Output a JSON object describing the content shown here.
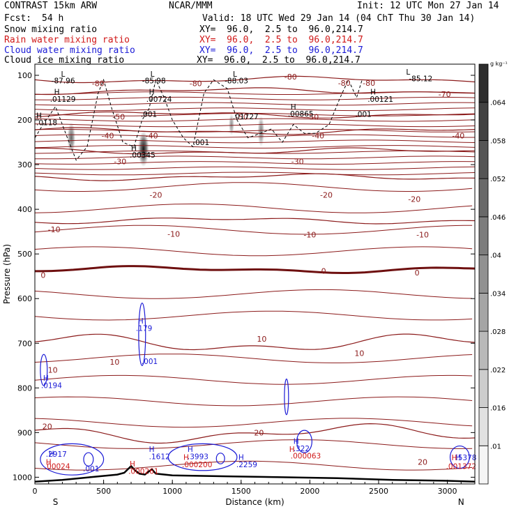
{
  "header": {
    "model": "CONTRAST 15km ARW",
    "center": "NCAR/MMM",
    "init": "Init: 12 UTC Mon 27 Jan 14",
    "fcst_label": "Fcst:",
    "fcst_value": "54 h",
    "valid": "Valid: 18 UTC Wed 29 Jan 14 (04 ChT Thu 30 Jan 14)"
  },
  "fields": [
    {
      "name": "Snow mixing ratio",
      "xy": "XY=  96.0,  2.5 to  96.0,214.7",
      "color": "#000000"
    },
    {
      "name": "Rain water mixing ratio",
      "xy": "XY=  96.0,  2.5 to  96.0,214.7",
      "color": "#d01818"
    },
    {
      "name": "Cloud water mixing ratio",
      "xy": "XY=  96.0,  2.5 to  96.0,214.7",
      "color": "#1a1ad6"
    },
    {
      "name": "Cloud ice mixing ratio",
      "xy": "XY=  96.0,  2.5 to  96.0,214.7",
      "color": "#000000"
    }
  ],
  "colorbar": {
    "unit": "g kg⁻¹",
    "ticks": [
      ".01",
      ".016",
      ".022",
      ".028",
      ".034",
      ".04",
      ".046",
      ".052",
      ".058",
      ".064"
    ]
  },
  "colors": {
    "isotherm": "#8b1a1a",
    "zero_isotherm": "#6e0f0f",
    "terrain": "#000000",
    "cloud_water": "#1a1ad6",
    "rain": "#d01818",
    "ice": "#000000"
  },
  "chart_data": {
    "type": "cross-section",
    "xlabel": "Distance (km)",
    "ylabel": "Pressure (hPa)",
    "xlim": [
      0,
      3200
    ],
    "ylim": [
      1015,
      75
    ],
    "xticks": [
      0,
      500,
      1000,
      1500,
      2000,
      2500,
      3000
    ],
    "yticks": [
      100,
      200,
      300,
      400,
      500,
      600,
      700,
      800,
      900,
      1000
    ],
    "endpoints": {
      "left": "S",
      "right": "N"
    },
    "isotherms": [
      {
        "label": "-80",
        "p": 110
      },
      {
        "label": "-70",
        "p": 135
      },
      {
        "label": "-50",
        "p": 188
      },
      {
        "label": "-40",
        "p": 225
      },
      {
        "label": "-30",
        "p": 270
      },
      {
        "label": "-20",
        "p": 328
      },
      {
        "label": "-10",
        "p": 425
      },
      {
        "label": "0",
        "p": 535
      },
      {
        "label": "10",
        "p": 700
      },
      {
        "label": "20",
        "p": 902
      }
    ],
    "isotherm_labels": [
      {
        "text": "-80",
        "x": 1860,
        "p": 103
      },
      {
        "text": "-80",
        "x": 460,
        "p": 118
      },
      {
        "text": "-80",
        "x": 1170,
        "p": 118
      },
      {
        "text": "-80",
        "x": 2250,
        "p": 117
      },
      {
        "text": "-80",
        "x": 2430,
        "p": 117
      },
      {
        "text": "-70",
        "x": 2980,
        "p": 142
      },
      {
        "text": "-50",
        "x": 610,
        "p": 193
      },
      {
        "text": "-50",
        "x": 1505,
        "p": 193
      },
      {
        "text": "-50",
        "x": 2020,
        "p": 193
      },
      {
        "text": "-40",
        "x": 530,
        "p": 235
      },
      {
        "text": "-40",
        "x": 850,
        "p": 235
      },
      {
        "text": "-40",
        "x": 2060,
        "p": 235
      },
      {
        "text": "-40",
        "x": 3080,
        "p": 235
      },
      {
        "text": "-30",
        "x": 620,
        "p": 293
      },
      {
        "text": "-30",
        "x": 1910,
        "p": 293
      },
      {
        "text": "-20",
        "x": 880,
        "p": 368
      },
      {
        "text": "-20",
        "x": 2120,
        "p": 368
      },
      {
        "text": "-20",
        "x": 2760,
        "p": 377
      },
      {
        "text": "-10",
        "x": 140,
        "p": 445
      },
      {
        "text": "-10",
        "x": 1010,
        "p": 455
      },
      {
        "text": "-10",
        "x": 2000,
        "p": 457
      },
      {
        "text": "-10",
        "x": 2820,
        "p": 457
      },
      {
        "text": "0",
        "x": 60,
        "p": 547
      },
      {
        "text": "0",
        "x": 2100,
        "p": 538
      },
      {
        "text": "0",
        "x": 2780,
        "p": 542
      },
      {
        "text": "10",
        "x": 130,
        "p": 760
      },
      {
        "text": "10",
        "x": 580,
        "p": 742
      },
      {
        "text": "10",
        "x": 1650,
        "p": 690
      },
      {
        "text": "10",
        "x": 2360,
        "p": 722
      },
      {
        "text": "20",
        "x": 90,
        "p": 886
      },
      {
        "text": "20",
        "x": 1630,
        "p": 900
      },
      {
        "text": "20",
        "x": 2820,
        "p": 966
      }
    ],
    "extrema": [
      {
        "text": "L",
        "x": 190,
        "p": 97,
        "kind": "ice"
      },
      {
        "text": "-87.96",
        "x": 120,
        "p": 112,
        "kind": "ice"
      },
      {
        "text": "L",
        "x": 840,
        "p": 97,
        "kind": "ice"
      },
      {
        "text": "-85.98",
        "x": 780,
        "p": 112,
        "kind": "ice"
      },
      {
        "text": "L",
        "x": 1440,
        "p": 97,
        "kind": "ice"
      },
      {
        "text": "-88.03",
        "x": 1380,
        "p": 112,
        "kind": "ice"
      },
      {
        "text": "L",
        "x": 2700,
        "p": 92,
        "kind": "ice"
      },
      {
        "text": "-85.12",
        "x": 2720,
        "p": 107,
        "kind": "ice"
      },
      {
        "text": "H",
        "x": 140,
        "p": 137,
        "kind": "ice"
      },
      {
        "text": ".01129",
        "x": 110,
        "p": 153,
        "kind": "ice"
      },
      {
        "text": "H",
        "x": 830,
        "p": 137,
        "kind": "ice"
      },
      {
        "text": ".00724",
        "x": 810,
        "p": 153,
        "kind": "ice"
      },
      {
        "text": "H",
        "x": 2440,
        "p": 137,
        "kind": "ice"
      },
      {
        "text": ".00121",
        "x": 2420,
        "p": 153,
        "kind": "ice"
      },
      {
        "text": ".001",
        "x": 770,
        "p": 187,
        "kind": "ice"
      },
      {
        "text": "H",
        "x": 1860,
        "p": 170,
        "kind": "ice"
      },
      {
        "text": ".00865",
        "x": 1840,
        "p": 186,
        "kind": "ice"
      },
      {
        "text": ".001",
        "x": 2330,
        "p": 187,
        "kind": "ice"
      },
      {
        "text": "H",
        "x": 10,
        "p": 190,
        "kind": "ice"
      },
      {
        "text": ".0118",
        "x": 0,
        "p": 205,
        "kind": "ice"
      },
      {
        "text": ".01727",
        "x": 1440,
        "p": 192,
        "kind": "ice"
      },
      {
        "text": ".001",
        "x": 1150,
        "p": 250,
        "kind": "ice"
      },
      {
        "text": "H",
        "x": 700,
        "p": 262,
        "kind": "ice"
      },
      {
        "text": ".00345",
        "x": 690,
        "p": 278,
        "kind": "ice"
      },
      {
        "text": "H",
        "x": 750,
        "p": 650,
        "kind": "cloud"
      },
      {
        "text": ".179",
        "x": 735,
        "p": 666,
        "kind": "cloud"
      },
      {
        "text": ".001",
        "x": 775,
        "p": 740,
        "kind": "cloud"
      },
      {
        "text": "H",
        "x": 60,
        "p": 778,
        "kind": "cloud"
      },
      {
        "text": ".0194",
        "x": 45,
        "p": 794,
        "kind": "cloud"
      },
      {
        "text": "H",
        "x": 1880,
        "p": 919,
        "kind": "cloud"
      },
      {
        "text": ".322",
        "x": 1880,
        "p": 935,
        "kind": "cloud"
      },
      {
        "text": ".000063",
        "x": 1860,
        "p": 952,
        "kind": "rain"
      },
      {
        "text": "H",
        "x": 1850,
        "p": 937,
        "kind": "rain"
      },
      {
        "text": "H",
        "x": 100,
        "p": 947,
        "kind": "cloud"
      },
      {
        "text": ".2917",
        "x": 80,
        "p": 948,
        "kind": "cloud"
      },
      {
        "text": "H",
        "x": 80,
        "p": 966,
        "kind": "rain"
      },
      {
        "text": ".00024",
        "x": 70,
        "p": 975,
        "kind": "rain"
      },
      {
        "text": ".001",
        "x": 350,
        "p": 981,
        "kind": "cloud"
      },
      {
        "text": "H",
        "x": 830,
        "p": 937,
        "kind": "cloud"
      },
      {
        "text": ".1612",
        "x": 830,
        "p": 953,
        "kind": "cloud"
      },
      {
        "text": "H",
        "x": 1110,
        "p": 937,
        "kind": "cloud"
      },
      {
        "text": ".3993",
        "x": 1110,
        "p": 953,
        "kind": "cloud"
      },
      {
        "text": "H",
        "x": 1080,
        "p": 955,
        "kind": "rain"
      },
      {
        "text": ".000200",
        "x": 1070,
        "p": 971,
        "kind": "rain"
      },
      {
        "text": "H",
        "x": 1480,
        "p": 955,
        "kind": "cloud"
      },
      {
        "text": ".2259",
        "x": 1465,
        "p": 971,
        "kind": "cloud"
      },
      {
        "text": "H",
        "x": 690,
        "p": 970,
        "kind": "rain"
      },
      {
        "text": ".000261",
        "x": 680,
        "p": 986,
        "kind": "rain"
      },
      {
        "text": "H",
        "x": 3060,
        "p": 955,
        "kind": "cloud"
      },
      {
        "text": ".5378",
        "x": 3060,
        "p": 956,
        "kind": "cloud"
      },
      {
        "text": "H",
        "x": 3030,
        "p": 956,
        "kind": "rain"
      },
      {
        "text": ".001372",
        "x": 2990,
        "p": 975,
        "kind": "rain"
      }
    ],
    "snow_shading": [
      {
        "x": 790,
        "p": 265,
        "dx": 40,
        "dp": 40,
        "value": 0.064
      },
      {
        "x": 265,
        "p": 240,
        "dx": 30,
        "dp": 35,
        "value": 0.03
      },
      {
        "x": 1645,
        "p": 225,
        "dx": 25,
        "dp": 35,
        "value": 0.02
      },
      {
        "x": 1430,
        "p": 210,
        "dx": 20,
        "dp": 25,
        "value": 0.012
      }
    ],
    "terrain": [
      [
        0,
        1010
      ],
      [
        200,
        1006
      ],
      [
        400,
        1000
      ],
      [
        600,
        994
      ],
      [
        650,
        990
      ],
      [
        700,
        975
      ],
      [
        730,
        985
      ],
      [
        760,
        992
      ],
      [
        800,
        994
      ],
      [
        850,
        982
      ],
      [
        880,
        992
      ],
      [
        1000,
        996
      ],
      [
        1400,
        998
      ],
      [
        1800,
        1000
      ],
      [
        2200,
        1002
      ],
      [
        2600,
        1006
      ],
      [
        3000,
        1008
      ],
      [
        3200,
        1010
      ]
    ]
  }
}
